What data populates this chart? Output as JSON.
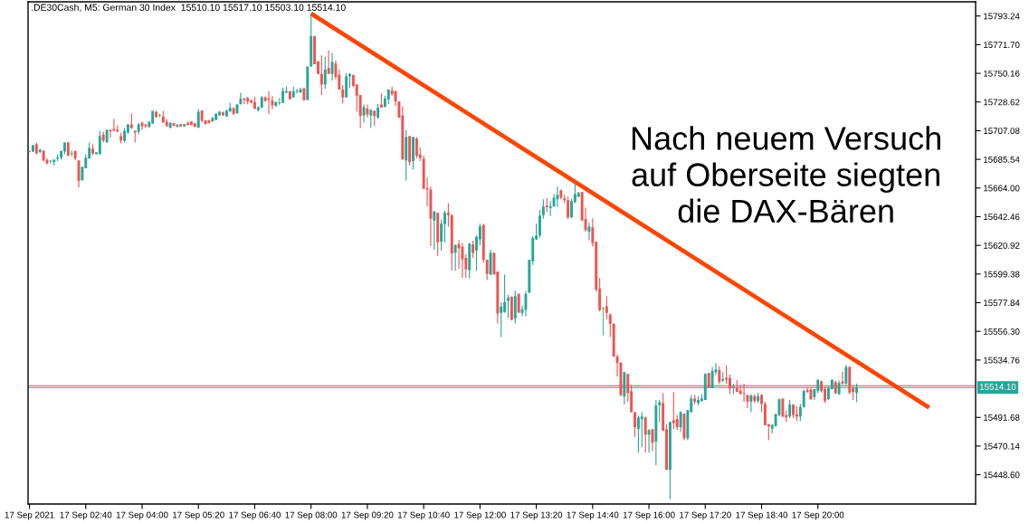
{
  "chart_data": {
    "type": "candlestick",
    "title": ".DE30Cash, M5: German 30 Index  15510.10 15517.10 15503.10 15514.10",
    "x": [
      "2021-09-17T01:20",
      "2021-09-17T01:25",
      "2021-09-17T01:30",
      "2021-09-17T01:35",
      "2021-09-17T01:40",
      "2021-09-17T01:45",
      "2021-09-17T01:50",
      "2021-09-17T01:55",
      "2021-09-17T02:00",
      "2021-09-17T02:05",
      "2021-09-17T02:10",
      "2021-09-17T02:15",
      "2021-09-17T02:20",
      "2021-09-17T02:25",
      "2021-09-17T02:30",
      "2021-09-17T02:35",
      "2021-09-17T02:40",
      "2021-09-17T02:45",
      "2021-09-17T02:50",
      "2021-09-17T02:55",
      "2021-09-17T03:00",
      "2021-09-17T03:05",
      "2021-09-17T03:10",
      "2021-09-17T03:15",
      "2021-09-17T03:20",
      "2021-09-17T03:25",
      "2021-09-17T03:30",
      "2021-09-17T03:35",
      "2021-09-17T03:40",
      "2021-09-17T03:45",
      "2021-09-17T03:50",
      "2021-09-17T03:55",
      "2021-09-17T04:00",
      "2021-09-17T04:05",
      "2021-09-17T04:10",
      "2021-09-17T04:15",
      "2021-09-17T04:20",
      "2021-09-17T04:25",
      "2021-09-17T04:30",
      "2021-09-17T04:35",
      "2021-09-17T04:40",
      "2021-09-17T04:45",
      "2021-09-17T04:50",
      "2021-09-17T04:55",
      "2021-09-17T05:00",
      "2021-09-17T05:05",
      "2021-09-17T05:10",
      "2021-09-17T05:15",
      "2021-09-17T05:20",
      "2021-09-17T05:25",
      "2021-09-17T05:30",
      "2021-09-17T05:35",
      "2021-09-17T05:40",
      "2021-09-17T05:45",
      "2021-09-17T05:50",
      "2021-09-17T05:55",
      "2021-09-17T06:00",
      "2021-09-17T06:05",
      "2021-09-17T06:10",
      "2021-09-17T06:15",
      "2021-09-17T06:20",
      "2021-09-17T06:25",
      "2021-09-17T06:30",
      "2021-09-17T06:35",
      "2021-09-17T06:40",
      "2021-09-17T06:45",
      "2021-09-17T06:50",
      "2021-09-17T06:55",
      "2021-09-17T07:00",
      "2021-09-17T07:05",
      "2021-09-17T07:10",
      "2021-09-17T07:15",
      "2021-09-17T07:20",
      "2021-09-17T07:25",
      "2021-09-17T07:30",
      "2021-09-17T07:35",
      "2021-09-17T07:40",
      "2021-09-17T07:45",
      "2021-09-17T07:50",
      "2021-09-17T07:55",
      "2021-09-17T08:00",
      "2021-09-17T08:05",
      "2021-09-17T08:10",
      "2021-09-17T08:15",
      "2021-09-17T08:20",
      "2021-09-17T08:25",
      "2021-09-17T08:30",
      "2021-09-17T08:35",
      "2021-09-17T08:40",
      "2021-09-17T08:45",
      "2021-09-17T08:50",
      "2021-09-17T08:55",
      "2021-09-17T09:00",
      "2021-09-17T09:05",
      "2021-09-17T09:10",
      "2021-09-17T09:15",
      "2021-09-17T09:20",
      "2021-09-17T09:25",
      "2021-09-17T09:30",
      "2021-09-17T09:35",
      "2021-09-17T09:40",
      "2021-09-17T09:45",
      "2021-09-17T09:50",
      "2021-09-17T09:55",
      "2021-09-17T10:00",
      "2021-09-17T10:05",
      "2021-09-17T10:10",
      "2021-09-17T10:15",
      "2021-09-17T10:20",
      "2021-09-17T10:25",
      "2021-09-17T10:30",
      "2021-09-17T10:35",
      "2021-09-17T10:40",
      "2021-09-17T10:45",
      "2021-09-17T10:50",
      "2021-09-17T10:55",
      "2021-09-17T11:00",
      "2021-09-17T11:05",
      "2021-09-17T11:10",
      "2021-09-17T11:15",
      "2021-09-17T11:20",
      "2021-09-17T11:25",
      "2021-09-17T11:30",
      "2021-09-17T11:35",
      "2021-09-17T11:40",
      "2021-09-17T11:45",
      "2021-09-17T11:50",
      "2021-09-17T11:55",
      "2021-09-17T12:00",
      "2021-09-17T12:05",
      "2021-09-17T12:10",
      "2021-09-17T12:15",
      "2021-09-17T12:20",
      "2021-09-17T12:25",
      "2021-09-17T12:30",
      "2021-09-17T12:35",
      "2021-09-17T12:40",
      "2021-09-17T12:45",
      "2021-09-17T12:50",
      "2021-09-17T12:55",
      "2021-09-17T13:00",
      "2021-09-17T13:05",
      "2021-09-17T13:10",
      "2021-09-17T13:15",
      "2021-09-17T13:20",
      "2021-09-17T13:25",
      "2021-09-17T13:30",
      "2021-09-17T13:35",
      "2021-09-17T13:40",
      "2021-09-17T13:45",
      "2021-09-17T13:50",
      "2021-09-17T13:55",
      "2021-09-17T14:00",
      "2021-09-17T14:05",
      "2021-09-17T14:10",
      "2021-09-17T14:15",
      "2021-09-17T14:20",
      "2021-09-17T14:25",
      "2021-09-17T14:30",
      "2021-09-17T14:35",
      "2021-09-17T14:40",
      "2021-09-17T14:45",
      "2021-09-17T14:50",
      "2021-09-17T14:55",
      "2021-09-17T15:00",
      "2021-09-17T15:05",
      "2021-09-17T15:10",
      "2021-09-17T15:15",
      "2021-09-17T15:20",
      "2021-09-17T15:25",
      "2021-09-17T15:30",
      "2021-09-17T15:35",
      "2021-09-17T15:40",
      "2021-09-17T15:45",
      "2021-09-17T15:50",
      "2021-09-17T15:55",
      "2021-09-17T16:00",
      "2021-09-17T16:05",
      "2021-09-17T16:10",
      "2021-09-17T16:15",
      "2021-09-17T16:20",
      "2021-09-17T16:25",
      "2021-09-17T16:30",
      "2021-09-17T16:35",
      "2021-09-17T16:40",
      "2021-09-17T16:45",
      "2021-09-17T16:50",
      "2021-09-17T16:55",
      "2021-09-17T17:00",
      "2021-09-17T17:05",
      "2021-09-17T17:10",
      "2021-09-17T17:15",
      "2021-09-17T17:20",
      "2021-09-17T17:25",
      "2021-09-17T17:30",
      "2021-09-17T17:35",
      "2021-09-17T17:40",
      "2021-09-17T17:45",
      "2021-09-17T17:50",
      "2021-09-17T17:55",
      "2021-09-17T18:00",
      "2021-09-17T18:05",
      "2021-09-17T18:10",
      "2021-09-17T18:15",
      "2021-09-17T18:20",
      "2021-09-17T18:25",
      "2021-09-17T18:30",
      "2021-09-17T18:35",
      "2021-09-17T18:40",
      "2021-09-17T18:45",
      "2021-09-17T18:50",
      "2021-09-17T18:55",
      "2021-09-17T19:00",
      "2021-09-17T19:05",
      "2021-09-17T19:10",
      "2021-09-17T19:15",
      "2021-09-17T19:20",
      "2021-09-17T19:25",
      "2021-09-17T19:30",
      "2021-09-17T19:35",
      "2021-09-17T19:40",
      "2021-09-17T19:45",
      "2021-09-17T19:50",
      "2021-09-17T19:55",
      "2021-09-17T20:00",
      "2021-09-17T20:05",
      "2021-09-17T20:10",
      "2021-09-17T20:15",
      "2021-09-17T20:20",
      "2021-09-17T20:25",
      "2021-09-17T20:30",
      "2021-09-17T20:35",
      "2021-09-17T20:40",
      "2021-09-17T20:45",
      "2021-09-17T20:50",
      "2021-09-17T20:55"
    ],
    "ohlc": [
      [
        15691.7,
        15691.9,
        15690.8,
        15691.0
      ],
      [
        15691.4,
        15696.2,
        15691.0,
        15696.2
      ],
      [
        15696.9,
        15698.2,
        15689.4,
        15690.1
      ],
      [
        15691.0,
        15693.5,
        15690.3,
        15692.8
      ],
      [
        15692.1,
        15692.1,
        15684.0,
        15684.7
      ],
      [
        15684.9,
        15686.5,
        15681.5,
        15682.6
      ],
      [
        15684.4,
        15684.4,
        15682.2,
        15684.4
      ],
      [
        15683.5,
        15685.3,
        15680.8,
        15685.3
      ],
      [
        15686.0,
        15689.4,
        15684.2,
        15686.9
      ],
      [
        15686.9,
        15691.9,
        15685.3,
        15691.9
      ],
      [
        15691.4,
        15698.2,
        15689.4,
        15698.2
      ],
      [
        15698.2,
        15698.7,
        15688.0,
        15688.3
      ],
      [
        15689.9,
        15692.1,
        15687.6,
        15689.9
      ],
      [
        15691.9,
        15691.9,
        15684.9,
        15686.2
      ],
      [
        15684.7,
        15684.7,
        15664.6,
        15669.3
      ],
      [
        15670.0,
        15679.9,
        15669.3,
        15679.9
      ],
      [
        15678.8,
        15689.4,
        15678.8,
        15686.7
      ],
      [
        15686.2,
        15698.2,
        15686.2,
        15694.2
      ],
      [
        15693.5,
        15696.9,
        15688.7,
        15689.9
      ],
      [
        15689.4,
        15690.8,
        15689.4,
        15690.8
      ],
      [
        15689.4,
        15707.0,
        15689.4,
        15703.0
      ],
      [
        15704.1,
        15706.3,
        15698.2,
        15699.6
      ],
      [
        15698.2,
        15707.7,
        15698.2,
        15707.7
      ],
      [
        15707.7,
        15707.7,
        15701.8,
        15706.6
      ],
      [
        15708.4,
        15715.8,
        15707.0,
        15707.0
      ],
      [
        15707.7,
        15711.1,
        15706.3,
        15706.3
      ],
      [
        15703.0,
        15705.7,
        15697.5,
        15699.6
      ],
      [
        15699.6,
        15709.1,
        15698.2,
        15707.0
      ],
      [
        15705.7,
        15711.8,
        15704.5,
        15711.8
      ],
      [
        15711.8,
        15719.9,
        15708.4,
        15709.1
      ],
      [
        15707.0,
        15707.0,
        15698.2,
        15705.7
      ],
      [
        15706.3,
        15713.1,
        15704.3,
        15711.8
      ],
      [
        15713.1,
        15713.8,
        15707.7,
        15710.4
      ],
      [
        15711.8,
        15711.8,
        15709.1,
        15710.4
      ],
      [
        15709.7,
        15713.8,
        15709.7,
        15713.8
      ],
      [
        15712.4,
        15721.9,
        15712.4,
        15721.9
      ],
      [
        15721.2,
        15721.9,
        15717.2,
        15717.2
      ],
      [
        15718.5,
        15719.9,
        15717.2,
        15718.5
      ],
      [
        15717.9,
        15721.9,
        15713.1,
        15713.1
      ],
      [
        15713.8,
        15715.8,
        15710.4,
        15710.4
      ],
      [
        15709.1,
        15713.1,
        15709.1,
        15713.1
      ],
      [
        15712.7,
        15712.7,
        15710.6,
        15710.6
      ],
      [
        15710.2,
        15712.2,
        15709.5,
        15711.5
      ],
      [
        15712.0,
        15712.0,
        15710.2,
        15710.2
      ],
      [
        15710.2,
        15712.0,
        15710.2,
        15712.0
      ],
      [
        15712.7,
        15714.0,
        15711.3,
        15711.3
      ],
      [
        15714.0,
        15714.0,
        15711.3,
        15711.3
      ],
      [
        15712.7,
        15712.7,
        15709.9,
        15709.9
      ],
      [
        15709.3,
        15723.5,
        15709.3,
        15721.2
      ],
      [
        15722.2,
        15722.2,
        15713.1,
        15714.5
      ],
      [
        15714.7,
        15715.4,
        15712.0,
        15712.0
      ],
      [
        15714.7,
        15715.4,
        15712.4,
        15712.9
      ],
      [
        15714.0,
        15717.4,
        15714.0,
        15716.7
      ],
      [
        15715.1,
        15719.9,
        15715.1,
        15719.9
      ],
      [
        15718.5,
        15721.9,
        15718.5,
        15721.2
      ],
      [
        15720.8,
        15721.5,
        15718.1,
        15718.8
      ],
      [
        15717.9,
        15722.8,
        15717.4,
        15722.2
      ],
      [
        15721.5,
        15728.0,
        15721.5,
        15724.2
      ],
      [
        15723.9,
        15724.9,
        15719.0,
        15719.7
      ],
      [
        15720.1,
        15727.1,
        15720.1,
        15726.7
      ],
      [
        15726.9,
        15735.5,
        15726.9,
        15731.2
      ],
      [
        15731.4,
        15731.4,
        15726.9,
        15730.3
      ],
      [
        15731.6,
        15732.5,
        15726.9,
        15728.9
      ],
      [
        15729.8,
        15730.7,
        15727.6,
        15728.2
      ],
      [
        15728.7,
        15732.5,
        15723.5,
        15723.5
      ],
      [
        15722.6,
        15725.3,
        15721.5,
        15724.6
      ],
      [
        15724.4,
        15733.2,
        15724.4,
        15732.1
      ],
      [
        15732.1,
        15732.8,
        15728.7,
        15729.4
      ],
      [
        15731.4,
        15736.8,
        15719.4,
        15730.3
      ],
      [
        15729.8,
        15733.0,
        15723.1,
        15726.2
      ],
      [
        15725.8,
        15728.7,
        15724.9,
        15728.7
      ],
      [
        15728.0,
        15731.6,
        15726.2,
        15728.0
      ],
      [
        15728.0,
        15739.5,
        15728.0,
        15736.8
      ],
      [
        15735.7,
        15740.2,
        15735.2,
        15736.8
      ],
      [
        15736.8,
        15736.8,
        15730.7,
        15730.7
      ],
      [
        15732.1,
        15740.2,
        15732.1,
        15736.8
      ],
      [
        15736.4,
        15738.4,
        15735.0,
        15737.0
      ],
      [
        15735.7,
        15739.5,
        15735.7,
        15738.2
      ],
      [
        15738.9,
        15739.5,
        15729.4,
        15730.1
      ],
      [
        15730.1,
        15755.3,
        15730.1,
        15755.3
      ],
      [
        15755.3,
        15795.3,
        15755.3,
        15778.2
      ],
      [
        15778.2,
        15778.2,
        15757.0,
        15757.0
      ],
      [
        15759.2,
        15759.2,
        15749.7,
        15749.7
      ],
      [
        15749.7,
        15763.7,
        15733.9,
        15741.8
      ],
      [
        15741.8,
        15762.6,
        15738.4,
        15753.1
      ],
      [
        15754.2,
        15767.3,
        15749.7,
        15749.7
      ],
      [
        15749.7,
        15765.5,
        15744.7,
        15758.7
      ],
      [
        15757.6,
        15759.9,
        15745.6,
        15747.4
      ],
      [
        15749.0,
        15753.1,
        15738.0,
        15738.0
      ],
      [
        15738.0,
        15741.3,
        15727.6,
        15732.1
      ],
      [
        15732.1,
        15750.2,
        15732.1,
        15747.9
      ],
      [
        15747.9,
        15750.4,
        15739.1,
        15749.7
      ],
      [
        15749.0,
        15749.0,
        15739.6,
        15740.7
      ],
      [
        15741.8,
        15741.8,
        15721.5,
        15733.4
      ],
      [
        15733.9,
        15733.9,
        15709.1,
        15718.1
      ],
      [
        15718.5,
        15726.7,
        15713.1,
        15724.9
      ],
      [
        15723.7,
        15726.7,
        15717.0,
        15719.2
      ],
      [
        15718.5,
        15723.3,
        15709.1,
        15722.6
      ],
      [
        15722.0,
        15722.0,
        15710.6,
        15718.1
      ],
      [
        15717.0,
        15727.1,
        15715.8,
        15724.4
      ],
      [
        15726.7,
        15735.0,
        15724.4,
        15724.4
      ],
      [
        15724.9,
        15733.4,
        15724.9,
        15731.2
      ],
      [
        15730.5,
        15738.0,
        15727.1,
        15738.0
      ],
      [
        15737.3,
        15740.2,
        15733.4,
        15734.6
      ],
      [
        15736.8,
        15737.3,
        15725.5,
        15729.1
      ],
      [
        15729.1,
        15729.1,
        15716.5,
        15717.0
      ],
      [
        15718.5,
        15725.3,
        15685.4,
        15685.4
      ],
      [
        15684.7,
        15707.5,
        15669.5,
        15702.3
      ],
      [
        15703.0,
        15703.0,
        15680.8,
        15683.5
      ],
      [
        15684.2,
        15702.3,
        15677.9,
        15702.3
      ],
      [
        15701.1,
        15702.3,
        15686.5,
        15688.3
      ],
      [
        15689.2,
        15694.4,
        15684.2,
        15686.5
      ],
      [
        15686.0,
        15688.3,
        15663.4,
        15663.4
      ],
      [
        15663.9,
        15671.8,
        15650.3,
        15662.8
      ],
      [
        15662.8,
        15665.0,
        15620.5,
        15640.9
      ],
      [
        15639.5,
        15646.9,
        15617.6,
        15646.3
      ],
      [
        15645.4,
        15645.4,
        15613.1,
        15623.2
      ],
      [
        15623.7,
        15640.2,
        15616.9,
        15637.2
      ],
      [
        15636.8,
        15646.9,
        15623.2,
        15645.4
      ],
      [
        15645.4,
        15652.6,
        15635.0,
        15643.6
      ],
      [
        15643.6,
        15644.2,
        15601.8,
        15614.9
      ],
      [
        15615.3,
        15621.7,
        15601.8,
        15621.0
      ],
      [
        15621.7,
        15625.0,
        15603.4,
        15618.7
      ],
      [
        15619.9,
        15622.8,
        15596.6,
        15610.4
      ],
      [
        15611.5,
        15614.2,
        15596.6,
        15602.9
      ],
      [
        15602.2,
        15622.8,
        15596.1,
        15622.1
      ],
      [
        15621.6,
        15624.4,
        15611.5,
        15615.3
      ],
      [
        15617.1,
        15628.2,
        15601.6,
        15627.3
      ],
      [
        15625.3,
        15637.2,
        15621.0,
        15635.2
      ],
      [
        15636.1,
        15637.2,
        15607.9,
        15610.1
      ],
      [
        15610.1,
        15610.1,
        15594.8,
        15599.5
      ],
      [
        15598.9,
        15617.6,
        15598.9,
        15615.3
      ],
      [
        15615.3,
        15615.3,
        15599.1,
        15599.1
      ],
      [
        15601.3,
        15601.3,
        15562.3,
        15569.7
      ],
      [
        15570.2,
        15578.1,
        15552.1,
        15574.9
      ],
      [
        15570.9,
        15598.9,
        15570.2,
        15578.3
      ],
      [
        15579.2,
        15583.7,
        15566.3,
        15581.7
      ],
      [
        15582.4,
        15582.4,
        15564.5,
        15565.2
      ],
      [
        15566.1,
        15586.9,
        15562.3,
        15582.8
      ],
      [
        15584.4,
        15584.9,
        15570.4,
        15570.4
      ],
      [
        15570.2,
        15575.8,
        15567.7,
        15572.9
      ],
      [
        15572.4,
        15586.7,
        15567.7,
        15584.4
      ],
      [
        15585.3,
        15610.1,
        15585.3,
        15610.1
      ],
      [
        15609.0,
        15627.8,
        15606.3,
        15626.4
      ],
      [
        15625.3,
        15637.2,
        15625.3,
        15628.4
      ],
      [
        15628.4,
        15647.6,
        15626.6,
        15643.3
      ],
      [
        15643.6,
        15655.5,
        15640.9,
        15650.1
      ],
      [
        15650.8,
        15656.4,
        15645.8,
        15649.7
      ],
      [
        15649.0,
        15654.2,
        15642.9,
        15650.3
      ],
      [
        15650.1,
        15659.4,
        15650.1,
        15656.7
      ],
      [
        15655.5,
        15665.0,
        15649.9,
        15658.9
      ],
      [
        15662.3,
        15662.8,
        15655.5,
        15656.7
      ],
      [
        15656.2,
        15658.9,
        15652.6,
        15654.9
      ],
      [
        15654.9,
        15657.6,
        15640.6,
        15642.0
      ],
      [
        15642.0,
        15656.0,
        15641.3,
        15654.2
      ],
      [
        15653.5,
        15667.1,
        15652.6,
        15659.4
      ],
      [
        15657.6,
        15661.2,
        15657.1,
        15660.3
      ],
      [
        15661.0,
        15661.0,
        15639.1,
        15639.7
      ],
      [
        15640.6,
        15649.2,
        15631.1,
        15632.3
      ],
      [
        15631.1,
        15637.9,
        15625.0,
        15635.0
      ],
      [
        15634.5,
        15641.3,
        15619.9,
        15622.6
      ],
      [
        15623.7,
        15623.7,
        15586.0,
        15587.8
      ],
      [
        15588.5,
        15596.6,
        15571.3,
        15572.4
      ],
      [
        15573.8,
        15573.8,
        15553.2,
        15573.8
      ],
      [
        15575.1,
        15582.6,
        15565.2,
        15570.2
      ],
      [
        15568.8,
        15570.0,
        15552.1,
        15562.0
      ],
      [
        15562.0,
        15562.2,
        15537.0,
        15537.4
      ],
      [
        15537.4,
        15539.0,
        15522.3,
        15532.4
      ],
      [
        15532.9,
        15532.9,
        15507.4,
        15508.5
      ],
      [
        15507.4,
        15525.7,
        15501.3,
        15525.7
      ],
      [
        15524.3,
        15524.3,
        15503.5,
        15509.9
      ],
      [
        15511.4,
        15516.0,
        15495.6,
        15495.6
      ],
      [
        15495.6,
        15495.6,
        15476.9,
        15484.3
      ],
      [
        15483.0,
        15492.9,
        15465.1,
        15491.6
      ],
      [
        15490.4,
        15495.6,
        15469.2,
        15492.3
      ],
      [
        15491.6,
        15492.3,
        15465.1,
        15478.7
      ],
      [
        15478.7,
        15482.8,
        15465.1,
        15482.1
      ],
      [
        15482.8,
        15482.8,
        15466.3,
        15472.6
      ],
      [
        15473.5,
        15504.7,
        15455.7,
        15500.6
      ],
      [
        15500.8,
        15504.7,
        15488.2,
        15503.1
      ],
      [
        15502.4,
        15509.9,
        15481.6,
        15481.6
      ],
      [
        15482.8,
        15486.6,
        15452.3,
        15452.3
      ],
      [
        15452.3,
        15488.2,
        15430.1,
        15488.2
      ],
      [
        15489.5,
        15510.5,
        15482.8,
        15487.3
      ],
      [
        15490.4,
        15493.4,
        15482.1,
        15484.3
      ],
      [
        15484.3,
        15496.3,
        15481.0,
        15495.6
      ],
      [
        15494.5,
        15494.5,
        15474.6,
        15476.0
      ],
      [
        15476.0,
        15497.2,
        15474.6,
        15497.2
      ],
      [
        15495.6,
        15508.5,
        15495.6,
        15505.8
      ],
      [
        15505.8,
        15508.5,
        15501.7,
        15503.5
      ],
      [
        15502.4,
        15507.6,
        15500.8,
        15504.7
      ],
      [
        15504.0,
        15509.2,
        15503.5,
        15505.8
      ],
      [
        15504.7,
        15525.0,
        15504.7,
        15524.3
      ],
      [
        15525.0,
        15525.0,
        15513.7,
        15513.7
      ],
      [
        15513.7,
        15529.5,
        15513.7,
        15526.6
      ],
      [
        15525.7,
        15532.4,
        15523.4,
        15527.7
      ],
      [
        15527.3,
        15530.2,
        15516.6,
        15518.2
      ],
      [
        15519.3,
        15525.7,
        15518.2,
        15520.5
      ],
      [
        15521.4,
        15530.6,
        15517.1,
        15520.0
      ],
      [
        15521.2,
        15523.9,
        15509.2,
        15513.3
      ],
      [
        15513.7,
        15517.1,
        15509.2,
        15514.8
      ],
      [
        15513.7,
        15519.8,
        15510.8,
        15510.8
      ],
      [
        15511.9,
        15516.0,
        15509.2,
        15509.2
      ],
      [
        15509.9,
        15517.1,
        15503.5,
        15509.4
      ],
      [
        15508.5,
        15508.5,
        15498.6,
        15503.5
      ],
      [
        15503.5,
        15509.2,
        15495.6,
        15508.1
      ],
      [
        15507.6,
        15509.2,
        15502.4,
        15504.0
      ],
      [
        15504.0,
        15510.3,
        15502.4,
        15507.6
      ],
      [
        15508.5,
        15509.2,
        15495.6,
        15501.7
      ],
      [
        15501.7,
        15503.5,
        15485.5,
        15485.9
      ],
      [
        15486.6,
        15486.6,
        15474.6,
        15485.0
      ],
      [
        15483.2,
        15486.6,
        15479.8,
        15485.9
      ],
      [
        15485.0,
        15494.5,
        15485.0,
        15494.0
      ],
      [
        15493.4,
        15505.8,
        15492.3,
        15505.3
      ],
      [
        15505.8,
        15505.8,
        15491.8,
        15492.3
      ],
      [
        15493.4,
        15496.8,
        15488.2,
        15491.8
      ],
      [
        15492.3,
        15504.7,
        15491.1,
        15501.3
      ],
      [
        15501.3,
        15501.3,
        15491.1,
        15493.4
      ],
      [
        15494.0,
        15500.2,
        15488.9,
        15492.3
      ],
      [
        15492.3,
        15501.7,
        15488.9,
        15499.5
      ],
      [
        15499.5,
        15512.6,
        15499.0,
        15511.5
      ],
      [
        15512.1,
        15514.2,
        15510.3,
        15510.8
      ],
      [
        15512.6,
        15513.7,
        15504.7,
        15505.3
      ],
      [
        15506.9,
        15513.0,
        15504.7,
        15513.0
      ],
      [
        15511.5,
        15520.5,
        15509.9,
        15519.8
      ],
      [
        15518.7,
        15519.4,
        15510.3,
        15511.5
      ],
      [
        15513.0,
        15514.8,
        15502.4,
        15504.0
      ],
      [
        15505.3,
        15514.8,
        15504.7,
        15513.7
      ],
      [
        15513.0,
        15520.5,
        15512.6,
        15519.8
      ],
      [
        15518.2,
        15519.4,
        15509.2,
        15509.9
      ],
      [
        15509.2,
        15519.4,
        15508.5,
        15517.5
      ],
      [
        15518.7,
        15526.1,
        15516.0,
        15517.1
      ],
      [
        15517.1,
        15531.1,
        15516.0,
        15529.5
      ],
      [
        15529.5,
        15530.2,
        15509.2,
        15510.3
      ],
      [
        15513.7,
        15514.8,
        15504.7,
        15510.8
      ],
      [
        15510.1,
        15517.1,
        15503.1,
        15514.1
      ]
    ],
    "colors": [
      "#ef5350",
      "#26a69a",
      "#ef5350",
      "#26a69a",
      "#ef5350",
      "#ef5350",
      "#4cb782",
      "#26a69a",
      "#26a69a",
      "#26a69a",
      "#26a69a",
      "#ef5350",
      "#4cb782",
      "#ef5350",
      "#ef5350",
      "#26a69a",
      "#26a69a",
      "#26a69a",
      "#ef5350",
      "#26a69a",
      "#26a69a",
      "#ef5350",
      "#26a69a",
      "#ef5350",
      "#ef5350",
      "#ef5350",
      "#ef5350",
      "#26a69a",
      "#26a69a",
      "#ef5350",
      "#ef5350",
      "#26a69a",
      "#ef5350",
      "#ef5350",
      "#26a69a",
      "#26a69a",
      "#ef5350",
      "#4cb782",
      "#ef5350",
      "#ef5350",
      "#26a69a",
      "#ef5350",
      "#26a69a",
      "#ef5350",
      "#26a69a",
      "#ef5350",
      "#ef5350",
      "#ef5350",
      "#26a69a",
      "#ef5350",
      "#ef5350",
      "#ef5350",
      "#26a69a",
      "#26a69a",
      "#26a69a",
      "#ef5350",
      "#26a69a",
      "#26a69a",
      "#ef5350",
      "#26a69a",
      "#26a69a",
      "#ef5350",
      "#ef5350",
      "#ef5350",
      "#ef5350",
      "#26a69a",
      "#26a69a",
      "#ef5350",
      "#ef5350",
      "#ef5350",
      "#26a69a",
      "#4cb782",
      "#26a69a",
      "#26a69a",
      "#ef5350",
      "#26a69a",
      "#26a69a",
      "#26a69a",
      "#ef5350",
      "#26a69a",
      "#26a69a",
      "#ef5350",
      "#ef5350",
      "#ef5350",
      "#26a69a",
      "#ef5350",
      "#26a69a",
      "#ef5350",
      "#ef5350",
      "#ef5350",
      "#26a69a",
      "#26a69a",
      "#ef5350",
      "#ef5350",
      "#ef5350",
      "#26a69a",
      "#ef5350",
      "#26a69a",
      "#ef5350",
      "#26a69a",
      "#ef5350",
      "#26a69a",
      "#26a69a",
      "#ef5350",
      "#ef5350",
      "#ef5350",
      "#ef5350",
      "#26a69a",
      "#ef5350",
      "#26a69a",
      "#ef5350",
      "#ef5350",
      "#ef5350",
      "#ef5350",
      "#ef5350",
      "#26a69a",
      "#ef5350",
      "#26a69a",
      "#26a69a",
      "#ef5350",
      "#ef5350",
      "#26a69a",
      "#ef5350",
      "#ef5350",
      "#ef5350",
      "#26a69a",
      "#ef5350",
      "#26a69a",
      "#26a69a",
      "#ef5350",
      "#ef5350",
      "#26a69a",
      "#ef5350",
      "#ef5350",
      "#26a69a",
      "#26a69a",
      "#26a69a",
      "#ef5350",
      "#26a69a",
      "#ef5350",
      "#26a69a",
      "#26a69a",
      "#26a69a",
      "#26a69a",
      "#26a69a",
      "#26a69a",
      "#26a69a",
      "#ef5350",
      "#26a69a",
      "#26a69a",
      "#26a69a",
      "#ef5350",
      "#ef5350",
      "#ef5350",
      "#26a69a",
      "#26a69a",
      "#26a69a",
      "#ef5350",
      "#ef5350",
      "#26a69a",
      "#ef5350",
      "#ef5350",
      "#ef5350",
      "#4cb782",
      "#ef5350",
      "#ef5350",
      "#ef5350",
      "#ef5350",
      "#ef5350",
      "#26a69a",
      "#ef5350",
      "#ef5350",
      "#ef5350",
      "#26a69a",
      "#26a69a",
      "#ef5350",
      "#26a69a",
      "#ef5350",
      "#26a69a",
      "#26a69a",
      "#ef5350",
      "#ef5350",
      "#26a69a",
      "#ef5350",
      "#ef5350",
      "#26a69a",
      "#ef5350",
      "#26a69a",
      "#26a69a",
      "#ef5350",
      "#26a69a",
      "#26a69a",
      "#26a69a",
      "#ef5350",
      "#26a69a",
      "#26a69a",
      "#ef5350",
      "#26a69a",
      "#ef5350",
      "#ef5350",
      "#26a69a",
      "#ef5350",
      "#ef5350",
      "#ef5350",
      "#ef5350",
      "#26a69a",
      "#ef5350",
      "#26a69a",
      "#ef5350",
      "#ef5350",
      "#ef5350",
      "#26a69a",
      "#26a69a",
      "#26a69a",
      "#ef5350",
      "#ef5350",
      "#26a69a",
      "#ef5350",
      "#ef5350",
      "#26a69a",
      "#26a69a",
      "#ef5350",
      "#ef5350",
      "#26a69a",
      "#26a69a",
      "#ef5350",
      "#ef5350",
      "#26a69a",
      "#26a69a",
      "#ef5350",
      "#26a69a",
      "#ef5350",
      "#26a69a",
      "#ef5350",
      "#ef5350",
      "#26a69a"
    ],
    "series": [
      {
        "type": "line",
        "x": [
          "2021-09-17T08:00",
          "2021-09-17T22:38"
        ],
        "values": [
          15795.1,
          15499.0
        ],
        "color": "#ff4500"
      }
    ],
    "xlim": [
      "2021-09-17T01:18",
      "2021-09-17T23:44"
    ],
    "ylim": [
      15426.6,
      15803.9
    ],
    "xticks": [
      {
        "value": "2021-09-17T01:20",
        "label": "17 Sep 2021"
      },
      {
        "value": "2021-09-17T02:40",
        "label": "17 Sep 02:40"
      },
      {
        "value": "2021-09-17T04:00",
        "label": "17 Sep 04:00"
      },
      {
        "value": "2021-09-17T05:20",
        "label": "17 Sep 05:20"
      },
      {
        "value": "2021-09-17T06:40",
        "label": "17 Sep 06:40"
      },
      {
        "value": "2021-09-17T08:00",
        "label": "17 Sep 08:00"
      },
      {
        "value": "2021-09-17T09:20",
        "label": "17 Sep 09:20"
      },
      {
        "value": "2021-09-17T10:40",
        "label": "17 Sep 10:40"
      },
      {
        "value": "2021-09-17T12:00",
        "label": "17 Sep 12:00"
      },
      {
        "value": "2021-09-17T13:20",
        "label": "17 Sep 13:20"
      },
      {
        "value": "2021-09-17T14:40",
        "label": "17 Sep 14:40"
      },
      {
        "value": "2021-09-17T16:00",
        "label": "17 Sep 16:00"
      },
      {
        "value": "2021-09-17T17:20",
        "label": "17 Sep 17:20"
      },
      {
        "value": "2021-09-17T18:40",
        "label": "17 Sep 18:40"
      },
      {
        "value": "2021-09-17T20:00",
        "label": "17 Sep 20:00"
      }
    ],
    "yticks": [
      {
        "value": 15448.6,
        "label": "15448.60"
      },
      15470.14,
      15491.68,
      15534.76,
      {
        "value": 15556.3,
        "label": "15556.30"
      },
      15577.84,
      15599.38,
      15620.92,
      15642.46,
      {
        "value": 15664,
        "label": "15664.00"
      },
      15685.54,
      15707.08,
      15728.62,
      15750.16,
      {
        "value": 15771.7,
        "label": "15771.70"
      },
      15793.24
    ],
    "ref_lines": [
      {
        "axis": "y",
        "value": 15515.5,
        "color": "#ef5350"
      },
      {
        "axis": "y",
        "value": 15514.1,
        "label": "15514.10",
        "color": "#26a69a"
      }
    ],
    "annotations": [
      "Nach neuem Versuch\nauf Oberseite siegten\ndie DAX-Bären"
    ]
  }
}
